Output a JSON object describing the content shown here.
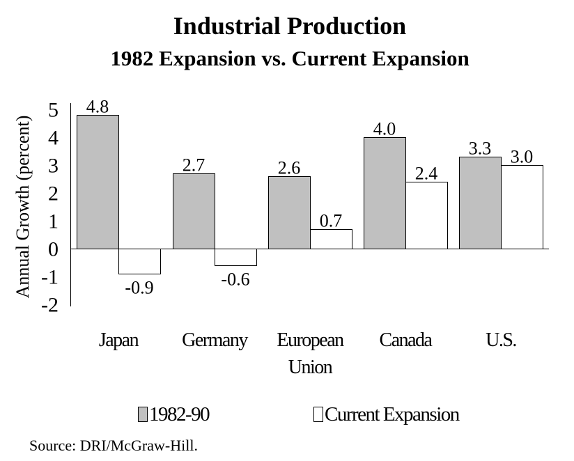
{
  "chart_data": {
    "type": "bar",
    "title": "Industrial Production",
    "subtitle": "1982 Expansion vs. Current Expansion",
    "xlabel": "",
    "ylabel": "Annual Growth (percent)",
    "ylim": [
      -2,
      5
    ],
    "yticks": [
      5,
      4,
      3,
      2,
      1,
      0,
      -1,
      -2
    ],
    "grid": false,
    "legend_position": "bottom",
    "categories": [
      [
        "Japan"
      ],
      [
        "Germany"
      ],
      [
        "European",
        "Union"
      ],
      [
        "Canada"
      ],
      [
        "U.S."
      ]
    ],
    "series": [
      {
        "name": "1982-90",
        "color": "#c0c0c0",
        "values": [
          4.8,
          2.7,
          2.6,
          4.0,
          3.3
        ],
        "labels": [
          "4.8",
          "2.7",
          "2.6",
          "4.0",
          "3.3"
        ]
      },
      {
        "name": "Current Expansion",
        "color": "#ffffff",
        "values": [
          -0.9,
          -0.6,
          0.7,
          2.4,
          3.0
        ],
        "labels": [
          "-0.9",
          "-0.6",
          "0.7",
          "2.4",
          "3.0"
        ]
      }
    ],
    "source": "Source:  DRI/McGraw-Hill."
  }
}
